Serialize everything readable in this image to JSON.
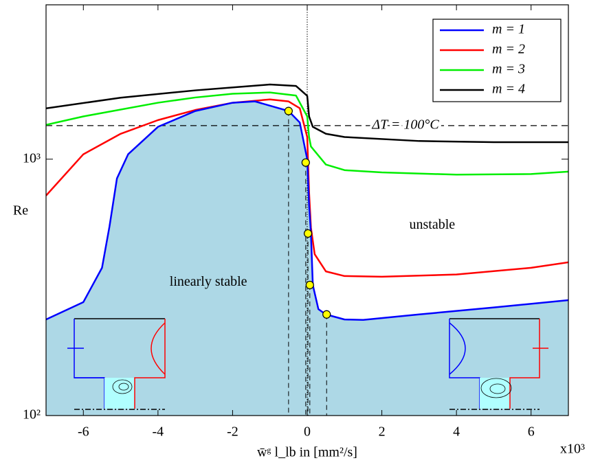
{
  "chart_data": {
    "type": "line",
    "x_label": "w̄ᵍ l_lb in [mm²/s]",
    "x_multiplier": "x10³",
    "y_label": "Re",
    "log_y": true,
    "xlim": [
      -7,
      7
    ],
    "ylim": [
      100,
      4000
    ],
    "xticks": [
      -6,
      -4,
      -2,
      0,
      2,
      4,
      6
    ],
    "yticks": [
      {
        "value": 100,
        "label": "10²"
      },
      {
        "value": 1000,
        "label": "10³"
      }
    ],
    "legend_position": "upper right",
    "region_color": "#add8e6",
    "series": [
      {
        "name": "m = 1",
        "color": "#0000ff",
        "x": [
          -7,
          -6,
          -5.5,
          -5.3,
          -5.1,
          -4.8,
          -4,
          -3,
          -2,
          -1.4,
          -0.5,
          -0.2,
          0,
          0.05,
          0.1,
          0.15,
          0.3,
          0.5,
          1,
          1.5,
          3,
          5,
          7
        ],
        "values": [
          237,
          277,
          377,
          546,
          841,
          1045,
          1337,
          1541,
          1660,
          1680,
          1541,
          1390,
          1000,
          657,
          513,
          323,
          260,
          248,
          237,
          236,
          248,
          264,
          282
        ]
      },
      {
        "name": "m = 2",
        "color": "#ff0000",
        "x": [
          -7,
          -6,
          -5,
          -4,
          -3,
          -2,
          -1,
          -0.5,
          -0.2,
          0,
          0.05,
          0.1,
          0.2,
          0.5,
          1,
          2,
          4,
          6,
          7
        ],
        "values": [
          721,
          1045,
          1256,
          1420,
          1555,
          1660,
          1710,
          1680,
          1580,
          1220,
          741,
          540,
          426,
          365,
          350,
          348,
          355,
          377,
          396
        ]
      },
      {
        "name": "m = 3",
        "color": "#00ee00",
        "x": [
          -7,
          -6,
          -4,
          -3,
          -2,
          -1,
          -0.3,
          0,
          0.05,
          0.1,
          0.5,
          1,
          2,
          4,
          6,
          7
        ],
        "values": [
          1361,
          1468,
          1660,
          1740,
          1800,
          1820,
          1770,
          1468,
          1220,
          1120,
          953,
          906,
          888,
          870,
          875,
          894
        ]
      },
      {
        "name": "m = 4",
        "color": "#000000",
        "x": [
          -7,
          -5,
          -3,
          -1,
          -0.3,
          0,
          0.05,
          0.15,
          0.5,
          1,
          3,
          5,
          7
        ],
        "values": [
          1578,
          1737,
          1855,
          1955,
          1930,
          1766,
          1468,
          1337,
          1256,
          1220,
          1177,
          1165,
          1165
        ]
      }
    ],
    "points": {
      "color": "#ffff00",
      "x": [
        -0.5,
        -0.04,
        0.02,
        0.07,
        0.52
      ],
      "values": [
        1541,
        970,
        513,
        323,
        248
      ]
    },
    "reference_line": {
      "value": 1352,
      "label": "ΔT = 100°C"
    },
    "annotations": [
      {
        "text": "linearly stable",
        "x": -2.65,
        "y": 330
      },
      {
        "text": "unstable",
        "x": 3.35,
        "y": 550
      }
    ]
  }
}
